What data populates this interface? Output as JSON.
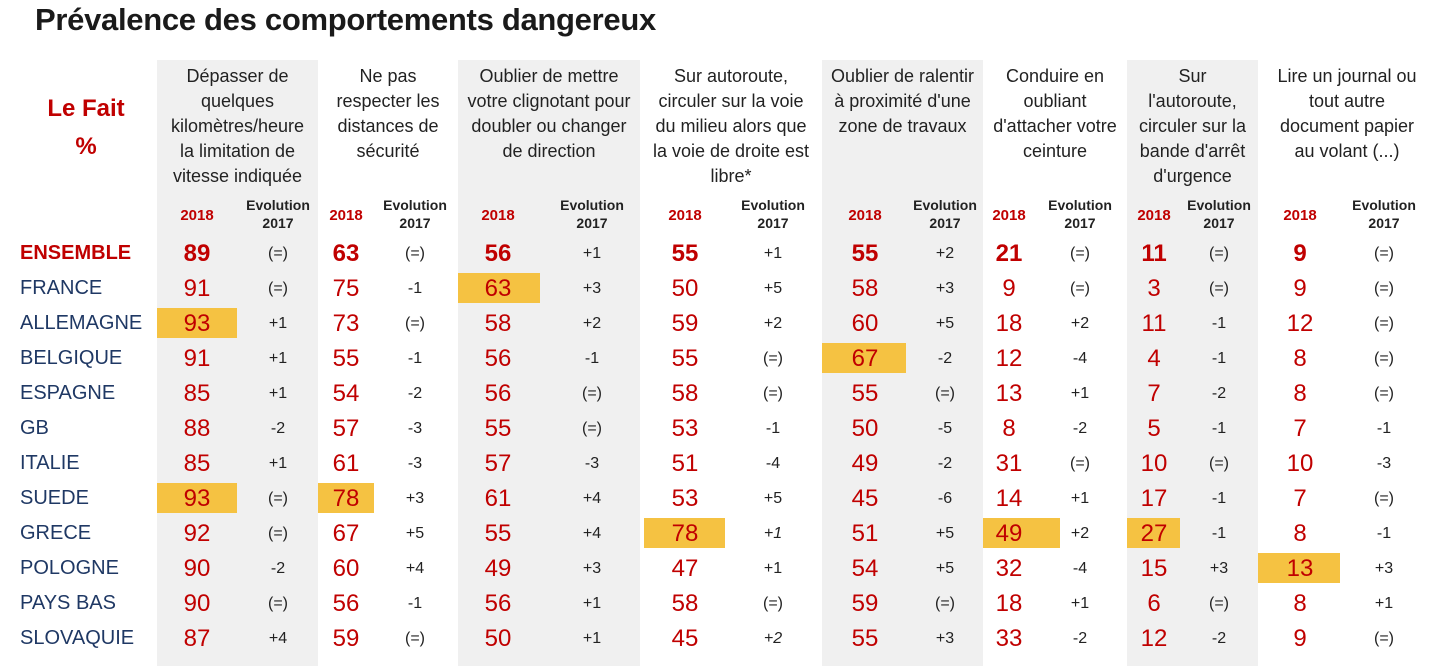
{
  "title": "Prévalence des comportements dangereux",
  "row_header": [
    "Le Fait",
    "%"
  ],
  "sub_2018": "2018",
  "sub_evol": [
    "Evolution",
    "2017"
  ],
  "columns": [
    {
      "header": [
        "Dépasser de",
        "quelques",
        "kilomètres/heure",
        "la limitation de",
        "vitesse indiquée"
      ]
    },
    {
      "header": [
        "Ne pas",
        "respecter les",
        "distances de",
        "sécurité"
      ]
    },
    {
      "header": [
        "Oublier de mettre",
        "votre clignotant pour",
        "doubler ou changer",
        "de direction"
      ]
    },
    {
      "header": [
        "Sur autoroute,",
        "circuler sur la voie",
        "du milieu alors que",
        "la voie de droite est",
        "libre*"
      ]
    },
    {
      "header": [
        "Oublier de ralentir",
        "à proximité d'une",
        "zone de travaux"
      ]
    },
    {
      "header": [
        "Conduire en",
        "oubliant",
        "d'attacher votre",
        "ceinture"
      ]
    },
    {
      "header": [
        "Sur",
        "l'autoroute,",
        "circuler sur la",
        "bande d'arrêt",
        "d'urgence"
      ]
    },
    {
      "header": [
        "Lire un journal ou",
        "tout autre",
        "document papier",
        "au volant (...)"
      ]
    }
  ],
  "rows": [
    {
      "label": "ENSEMBLE",
      "cells": [
        [
          "89",
          "(=)"
        ],
        [
          "63",
          "(=)"
        ],
        [
          "56",
          "+1"
        ],
        [
          "55",
          "+1"
        ],
        [
          "55",
          "+2"
        ],
        [
          "21",
          "(=)"
        ],
        [
          "11",
          "(=)"
        ],
        [
          "9",
          "(=)"
        ]
      ]
    },
    {
      "label": "FRANCE",
      "cells": [
        [
          "91",
          "(=)"
        ],
        [
          "75",
          "-1"
        ],
        [
          "63",
          "+3"
        ],
        [
          "50",
          "+5"
        ],
        [
          "58",
          "+3"
        ],
        [
          "9",
          "(=)"
        ],
        [
          "3",
          "(=)"
        ],
        [
          "9",
          "(=)"
        ]
      ]
    },
    {
      "label": "ALLEMAGNE",
      "cells": [
        [
          "93",
          "+1"
        ],
        [
          "73",
          "(=)"
        ],
        [
          "58",
          "+2"
        ],
        [
          "59",
          "+2"
        ],
        [
          "60",
          "+5"
        ],
        [
          "18",
          "+2"
        ],
        [
          "11",
          "-1"
        ],
        [
          "12",
          "(=)"
        ]
      ]
    },
    {
      "label": "BELGIQUE",
      "cells": [
        [
          "91",
          "+1"
        ],
        [
          "55",
          "-1"
        ],
        [
          "56",
          "-1"
        ],
        [
          "55",
          "(=)"
        ],
        [
          "67",
          "-2"
        ],
        [
          "12",
          "-4"
        ],
        [
          "4",
          "-1"
        ],
        [
          "8",
          "(=)"
        ]
      ]
    },
    {
      "label": "ESPAGNE",
      "cells": [
        [
          "85",
          "+1"
        ],
        [
          "54",
          "-2"
        ],
        [
          "56",
          "(=)"
        ],
        [
          "58",
          "(=)"
        ],
        [
          "55",
          "(=)"
        ],
        [
          "13",
          "+1"
        ],
        [
          "7",
          "-2"
        ],
        [
          "8",
          "(=)"
        ]
      ]
    },
    {
      "label": "GB",
      "cells": [
        [
          "88",
          "-2"
        ],
        [
          "57",
          "-3"
        ],
        [
          "55",
          "(=)"
        ],
        [
          "53",
          "-1"
        ],
        [
          "50",
          "-5"
        ],
        [
          "8",
          "-2"
        ],
        [
          "5",
          "-1"
        ],
        [
          "7",
          "-1"
        ]
      ]
    },
    {
      "label": "ITALIE",
      "cells": [
        [
          "85",
          "+1"
        ],
        [
          "61",
          "-3"
        ],
        [
          "57",
          "-3"
        ],
        [
          "51",
          "-4"
        ],
        [
          "49",
          "-2"
        ],
        [
          "31",
          "(=)"
        ],
        [
          "10",
          "(=)"
        ],
        [
          "10",
          "-3"
        ]
      ]
    },
    {
      "label": "SUEDE",
      "cells": [
        [
          "93",
          "(=)"
        ],
        [
          "78",
          "+3"
        ],
        [
          "61",
          "+4"
        ],
        [
          "53",
          "+5"
        ],
        [
          "45",
          "-6"
        ],
        [
          "14",
          "+1"
        ],
        [
          "17",
          "-1"
        ],
        [
          "7",
          "(=)"
        ]
      ]
    },
    {
      "label": "GRECE",
      "cells": [
        [
          "92",
          "(=)"
        ],
        [
          "67",
          "+5"
        ],
        [
          "55",
          "+4"
        ],
        [
          "78",
          "+1"
        ],
        [
          "51",
          "+5"
        ],
        [
          "49",
          "+2"
        ],
        [
          "27",
          "-1"
        ],
        [
          "8",
          "-1"
        ]
      ]
    },
    {
      "label": "POLOGNE",
      "cells": [
        [
          "90",
          "-2"
        ],
        [
          "60",
          "+4"
        ],
        [
          "49",
          "+3"
        ],
        [
          "47",
          "+1"
        ],
        [
          "54",
          "+5"
        ],
        [
          "32",
          "-4"
        ],
        [
          "15",
          "+3"
        ],
        [
          "13",
          "+3"
        ]
      ]
    },
    {
      "label": "PAYS BAS",
      "cells": [
        [
          "90",
          "(=)"
        ],
        [
          "56",
          "-1"
        ],
        [
          "56",
          "+1"
        ],
        [
          "58",
          "(=)"
        ],
        [
          "59",
          "(=)"
        ],
        [
          "18",
          "+1"
        ],
        [
          "6",
          "(=)"
        ],
        [
          "8",
          "+1"
        ]
      ]
    },
    {
      "label": "SLOVAQUIE",
      "cells": [
        [
          "87",
          "+4"
        ],
        [
          "59",
          "(=)"
        ],
        [
          "50",
          "+1"
        ],
        [
          "45",
          "+2"
        ],
        [
          "55",
          "+3"
        ],
        [
          "33",
          "-2"
        ],
        [
          "12",
          "-2"
        ],
        [
          "9",
          "(=)"
        ]
      ]
    }
  ],
  "highlighted_cells": [
    [
      2,
      0
    ],
    [
      7,
      0
    ],
    [
      7,
      1
    ],
    [
      1,
      2
    ],
    [
      8,
      3
    ],
    [
      3,
      4
    ],
    [
      8,
      5
    ],
    [
      8,
      6
    ],
    [
      9,
      7
    ]
  ],
  "italic_evolution_cells": [
    [
      8,
      3
    ],
    [
      11,
      3
    ]
  ],
  "colors": {
    "accent_red": "#c00000",
    "label_blue": "#1f3864",
    "highlight": "#f5c242",
    "band": "#f0f0f0"
  }
}
